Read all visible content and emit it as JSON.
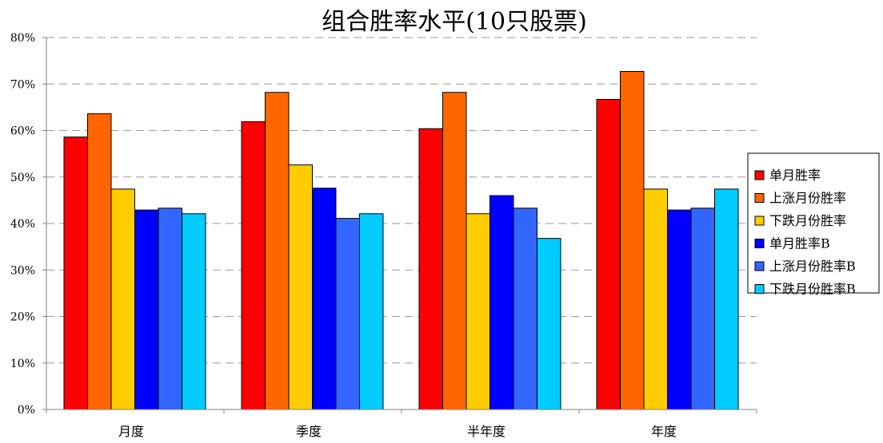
{
  "chart_data": {
    "type": "bar",
    "title": "组合胜率水平(10只股票)",
    "categories": [
      "月度",
      "季度",
      "半年度",
      "年度"
    ],
    "y_ticks": [
      "0%",
      "10%",
      "20%",
      "30%",
      "40%",
      "50%",
      "60%",
      "70%",
      "80%"
    ],
    "ylim": [
      0,
      80
    ],
    "grid": true,
    "legend_position": "right",
    "series": [
      {
        "name": "单月胜率",
        "color": "#ff0000",
        "values": [
          58.6,
          61.9,
          60.4,
          66.7
        ]
      },
      {
        "name": "上涨月份胜率",
        "color": "#ff6600",
        "values": [
          63.6,
          68.2,
          68.2,
          72.7
        ]
      },
      {
        "name": "下跌月份胜率",
        "color": "#ffcc00",
        "values": [
          47.4,
          52.6,
          42.1,
          47.4
        ]
      },
      {
        "name": "单月胜率B",
        "color": "#0000ff",
        "values": [
          42.9,
          47.6,
          46.0,
          42.9
        ]
      },
      {
        "name": "上涨月份胜率B",
        "color": "#3366ff",
        "values": [
          43.3,
          41.1,
          43.3,
          43.3
        ]
      },
      {
        "name": "下跌月份胜率B",
        "color": "#00ccff",
        "values": [
          42.1,
          42.1,
          36.8,
          47.4
        ]
      }
    ]
  }
}
